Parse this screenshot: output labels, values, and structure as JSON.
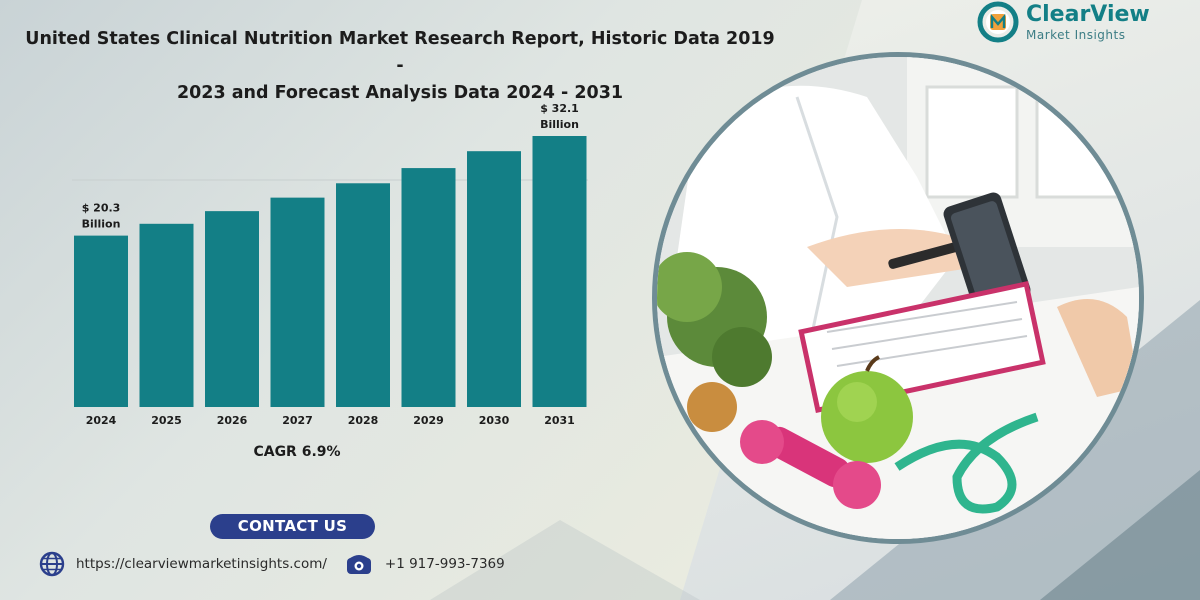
{
  "title_line1": "United States Clinical Nutrition Market Research Report, Historic Data 2019 -",
  "title_line2": "2023 and Forecast Analysis Data 2024 - 2031",
  "logo": {
    "name": "ClearView",
    "sub": "Market Insights",
    "brand_color": "#137f86"
  },
  "chart_data": {
    "type": "bar",
    "categories": [
      "2024",
      "2025",
      "2026",
      "2027",
      "2028",
      "2029",
      "2030",
      "2031"
    ],
    "values": [
      20.3,
      21.7,
      23.2,
      24.8,
      26.5,
      28.3,
      30.3,
      32.1
    ],
    "data_labels": [
      {
        "index": 0,
        "line1": "$ 20.3",
        "line2": "Billion"
      },
      {
        "index": 7,
        "line1": "$ 32.1",
        "line2": "Billion"
      }
    ],
    "ylim": [
      0,
      32.1
    ],
    "bar_color": "#137f86",
    "grid": false,
    "title": "",
    "xlabel": "",
    "ylabel": ""
  },
  "cagr": "CAGR 6.9%",
  "contact": {
    "button_label": "CONTACT US",
    "url": "https://clearviewmarketinsights.com/",
    "phone": "+1 917-993-7369",
    "button_color": "#2b3f8c"
  }
}
